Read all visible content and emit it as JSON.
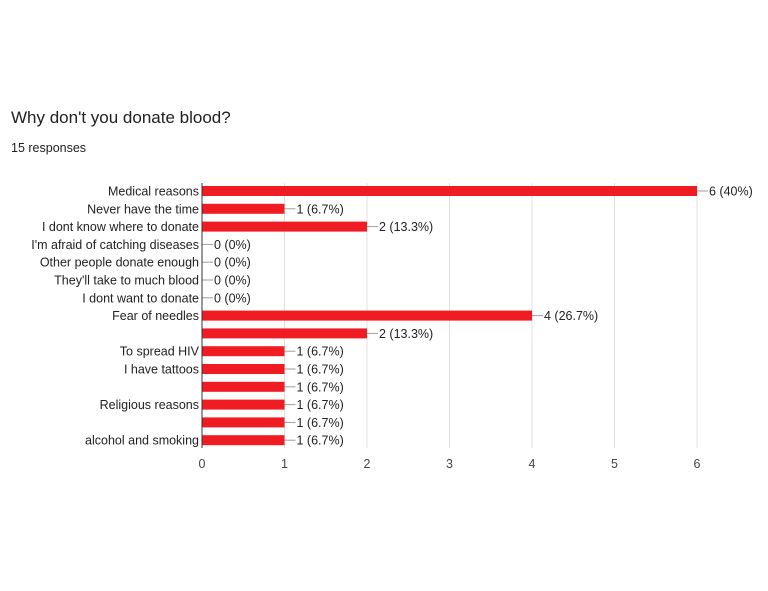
{
  "title": "Why don't you donate blood?",
  "subtitle": "15 responses",
  "colors": {
    "bar": "#ef1c24",
    "grid": "#e0e0e0",
    "axis": "#333333"
  },
  "chart_data": {
    "type": "bar",
    "orientation": "horizontal",
    "title": "Why don't you donate blood?",
    "xlabel": "",
    "ylabel": "",
    "xlim": [
      0,
      6
    ],
    "xticks": [
      0,
      1,
      2,
      3,
      4,
      5,
      6
    ],
    "grid": true,
    "categories": [
      "Medical reasons",
      "Never have the time",
      "I dont know where to donate",
      "I'm afraid of catching diseases",
      "Other people donate enough",
      "They'll take to much blood",
      "I dont want to donate",
      "Fear of needles",
      "",
      "To spread HIV",
      "I have tattoos",
      "",
      "Religious reasons",
      "",
      "alcohol and smoking"
    ],
    "values": [
      6,
      1,
      2,
      0,
      0,
      0,
      0,
      4,
      2,
      1,
      1,
      1,
      1,
      1,
      1
    ],
    "data_labels": [
      "6 (40%)",
      "1 (6.7%)",
      "2 (13.3%)",
      "0 (0%)",
      "0 (0%)",
      "0 (0%)",
      "0 (0%)",
      "4 (26.7%)",
      "2 (13.3%)",
      "1 (6.7%)",
      "1 (6.7%)",
      "1 (6.7%)",
      "1 (6.7%)",
      "1 (6.7%)",
      "1 (6.7%)"
    ]
  }
}
